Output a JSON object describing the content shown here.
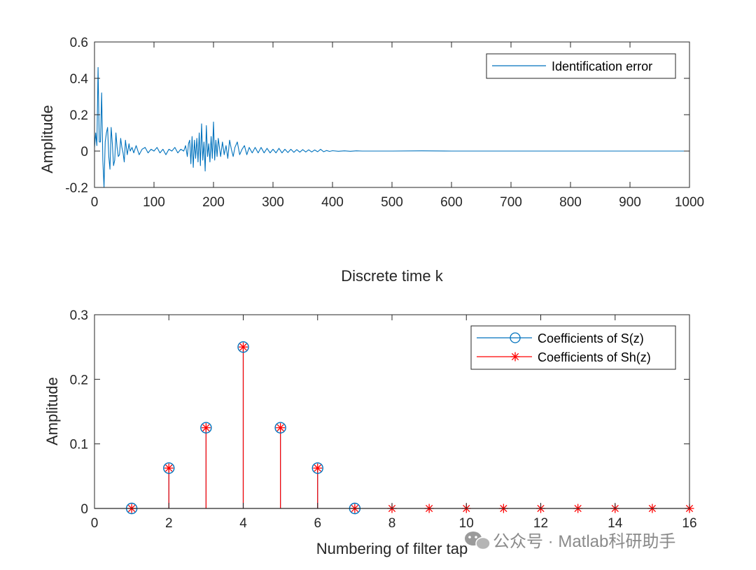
{
  "chart_data": [
    {
      "type": "line",
      "title": "",
      "xlabel": "Discrete time k",
      "ylabel": "Amplitude",
      "xlim": [
        0,
        1000
      ],
      "ylim": [
        -0.2,
        0.6
      ],
      "xticks": [
        0,
        100,
        200,
        300,
        400,
        500,
        600,
        700,
        800,
        900,
        1000
      ],
      "yticks": [
        -0.2,
        0,
        0.2,
        0.4,
        0.6
      ],
      "xtick_labels": [
        "0",
        "100",
        "200",
        "300",
        "400",
        "500",
        "600",
        "700",
        "800",
        "900",
        "1000"
      ],
      "ytick_labels": [
        "-0.2",
        "0",
        "0.2",
        "0.4",
        "0.6"
      ],
      "legend_location": "top-right",
      "series": [
        {
          "name": "Identification error",
          "color": "#0072BD",
          "x": [
            0,
            2,
            4,
            6,
            8,
            10,
            12,
            14,
            16,
            18,
            20,
            22,
            24,
            26,
            28,
            30,
            32,
            34,
            36,
            38,
            40,
            42,
            44,
            46,
            48,
            50,
            52,
            55,
            58,
            60,
            63,
            66,
            70,
            75,
            80,
            85,
            90,
            95,
            100,
            105,
            110,
            115,
            120,
            125,
            130,
            135,
            140,
            145,
            150,
            153,
            156,
            158,
            160,
            162,
            164,
            166,
            168,
            170,
            172,
            174,
            176,
            178,
            180,
            182,
            184,
            186,
            188,
            190,
            192,
            194,
            196,
            198,
            200,
            202,
            204,
            206,
            208,
            210,
            212,
            215,
            218,
            221,
            224,
            227,
            230,
            233,
            236,
            240,
            244,
            248,
            252,
            256,
            260,
            265,
            270,
            275,
            280,
            285,
            290,
            295,
            300,
            305,
            310,
            315,
            320,
            325,
            330,
            335,
            340,
            345,
            350,
            355,
            360,
            365,
            370,
            375,
            380,
            385,
            390,
            395,
            400,
            410,
            420,
            430,
            440,
            450,
            460,
            470,
            480,
            500,
            550,
            600,
            700,
            800,
            900,
            1000
          ],
          "y": [
            0.02,
            0.1,
            0.03,
            0.46,
            0.05,
            0.05,
            0.32,
            -0.05,
            -0.2,
            0.05,
            0.1,
            0.13,
            -0.03,
            -0.1,
            0.13,
            0.04,
            -0.08,
            -0.05,
            0.1,
            0.02,
            -0.03,
            -0.02,
            0.07,
            0.02,
            -0.01,
            -0.06,
            0.06,
            -0.02,
            0.04,
            0.0,
            0.02,
            -0.01,
            0.03,
            -0.02,
            0.01,
            0.02,
            -0.01,
            0.01,
            0.0,
            0.02,
            -0.01,
            0.01,
            -0.02,
            0.01,
            0.0,
            0.02,
            -0.01,
            0.01,
            0.0,
            0.03,
            -0.03,
            0.04,
            0.06,
            -0.07,
            0.08,
            -0.09,
            0.06,
            -0.04,
            0.07,
            -0.06,
            0.1,
            -0.08,
            0.15,
            -0.05,
            0.05,
            -0.11,
            0.14,
            -0.03,
            0.04,
            -0.06,
            0.08,
            -0.04,
            0.16,
            -0.05,
            0.06,
            -0.03,
            0.07,
            0.02,
            -0.03,
            0.05,
            -0.02,
            0.03,
            -0.04,
            0.06,
            0.01,
            -0.03,
            0.02,
            0.05,
            -0.02,
            0.01,
            0.03,
            -0.02,
            0.02,
            -0.01,
            0.02,
            -0.01,
            0.02,
            -0.01,
            0.015,
            -0.01,
            0.01,
            -0.01,
            0.015,
            -0.01,
            0.01,
            -0.008,
            0.01,
            -0.007,
            0.008,
            -0.006,
            0.008,
            -0.005,
            0.007,
            -0.005,
            0.006,
            -0.004,
            0.01,
            -0.004,
            0.003,
            -0.002,
            0.002,
            -0.001,
            0.001,
            -0.001,
            0.001,
            0.0,
            0.0,
            0.0,
            0.0,
            0.0,
            0.001,
            0.0,
            0.0,
            0.0,
            0.0,
            0.0
          ]
        }
      ]
    },
    {
      "type": "stem",
      "title": "",
      "xlabel": "Numbering of filter tap",
      "ylabel": "Amplitude",
      "xlim": [
        0,
        16
      ],
      "ylim": [
        0,
        0.3
      ],
      "xticks": [
        0,
        2,
        4,
        6,
        8,
        10,
        12,
        14,
        16
      ],
      "yticks": [
        0,
        0.1,
        0.2,
        0.3
      ],
      "xtick_labels": [
        "0",
        "2",
        "4",
        "6",
        "8",
        "10",
        "12",
        "14",
        "16"
      ],
      "ytick_labels": [
        "0",
        "0.1",
        "0.2",
        "0.3"
      ],
      "legend_location": "top-right",
      "series": [
        {
          "name": "Coefficients of S(z)",
          "color": "#0072BD",
          "marker": "circle",
          "x": [
            1,
            2,
            3,
            4,
            5,
            6,
            7
          ],
          "values": [
            0.0,
            0.0625,
            0.125,
            0.25,
            0.125,
            0.0625,
            0.0
          ]
        },
        {
          "name": "Coefficients of Sh(z)",
          "color": "#FF0000",
          "marker": "asterisk",
          "x": [
            1,
            2,
            3,
            4,
            5,
            6,
            7,
            8,
            9,
            10,
            11,
            12,
            13,
            14,
            15,
            16
          ],
          "values": [
            0.0,
            0.0625,
            0.125,
            0.25,
            0.125,
            0.0625,
            0.0,
            0.0,
            0.0,
            0.0,
            0.0,
            0.0,
            0.0,
            0.0,
            0.0,
            0.0
          ]
        }
      ]
    }
  ],
  "watermark": {
    "icon": "wechat-icon",
    "text": "公众号 · Matlab科研助手"
  }
}
